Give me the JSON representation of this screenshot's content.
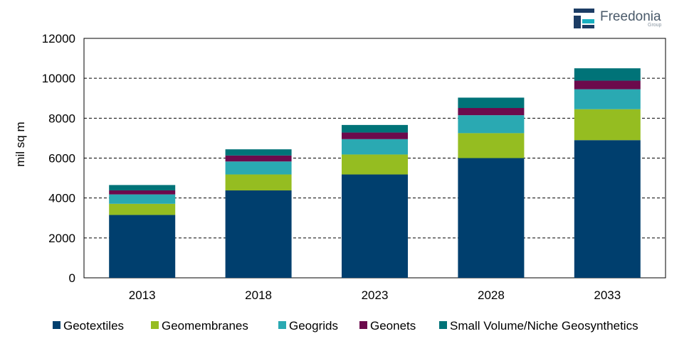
{
  "logo": {
    "name": "Freedonia",
    "sub": "Group",
    "colors": {
      "navy": "#1c3c64",
      "teal": "#1ab0c0"
    }
  },
  "chart_data": {
    "type": "bar",
    "stacked": true,
    "ylabel": "mil sq m",
    "xlabel": "",
    "ylim": [
      0,
      12000
    ],
    "yticks": [
      0,
      2000,
      4000,
      6000,
      8000,
      10000,
      12000
    ],
    "grid": true,
    "legend_position": "bottom",
    "categories": [
      "2013",
      "2018",
      "2023",
      "2028",
      "2033"
    ],
    "series": [
      {
        "name": "Geotextiles",
        "color": "#003f6e",
        "values": [
          3150,
          4380,
          5180,
          6000,
          6900
        ]
      },
      {
        "name": "Geomembranes",
        "color": "#95bd21",
        "values": [
          560,
          800,
          1000,
          1250,
          1550
        ]
      },
      {
        "name": "Geogrids",
        "color": "#2aa9b2",
        "values": [
          470,
          650,
          770,
          900,
          1000
        ]
      },
      {
        "name": "Geonets",
        "color": "#6c0a4c",
        "values": [
          200,
          300,
          330,
          360,
          430
        ]
      },
      {
        "name": "Small Volume/Niche Geosynthetics",
        "color": "#007378",
        "values": [
          270,
          310,
          380,
          520,
          620
        ]
      }
    ]
  }
}
